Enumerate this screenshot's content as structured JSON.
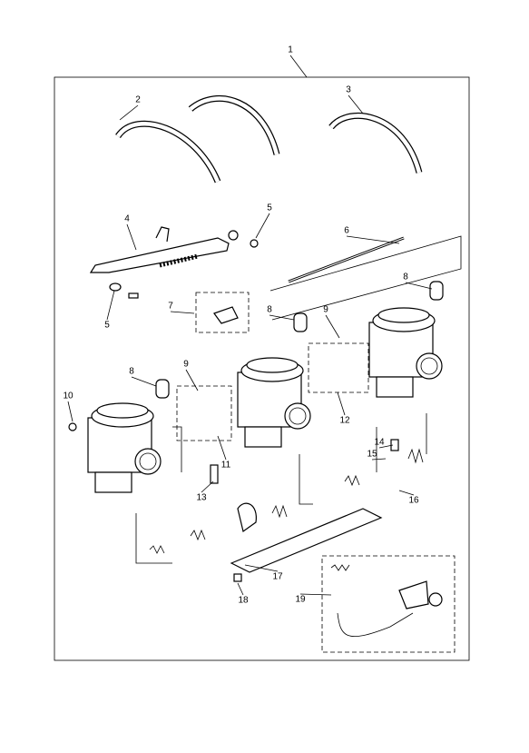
{
  "callouts": [
    "1",
    "2",
    "3",
    "4",
    "5",
    "6",
    "5",
    "7",
    "8",
    "8",
    "9",
    "8",
    "9",
    "10",
    "11",
    "12",
    "13",
    "14",
    "15",
    "16",
    "17",
    "18",
    "19"
  ]
}
